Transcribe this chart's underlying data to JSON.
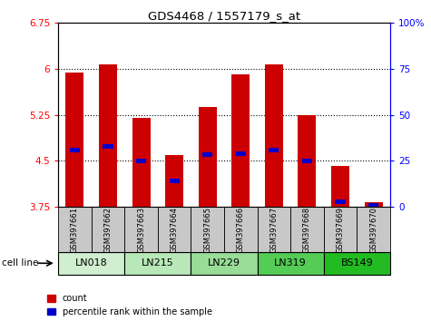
{
  "title": "GDS4468 / 1557179_s_at",
  "samples": [
    "GSM397661",
    "GSM397662",
    "GSM397663",
    "GSM397664",
    "GSM397665",
    "GSM397666",
    "GSM397667",
    "GSM397668",
    "GSM397669",
    "GSM397670"
  ],
  "cell_lines": [
    "LN018",
    "LN215",
    "LN229",
    "LN319",
    "BS149"
  ],
  "cell_line_spans": [
    [
      0,
      2
    ],
    [
      2,
      4
    ],
    [
      4,
      6
    ],
    [
      6,
      8
    ],
    [
      8,
      10
    ]
  ],
  "cell_line_colors": [
    "#d0eed0",
    "#b8e8b8",
    "#98dc98",
    "#55cc55",
    "#22bb22"
  ],
  "bar_values": [
    5.93,
    6.07,
    5.2,
    4.6,
    5.38,
    5.9,
    6.07,
    5.25,
    4.42,
    3.83
  ],
  "percentile_values": [
    4.68,
    4.73,
    4.5,
    4.17,
    4.6,
    4.62,
    4.68,
    4.5,
    3.84,
    3.78
  ],
  "bar_bottom": 3.75,
  "ylim_left": [
    3.75,
    6.75
  ],
  "yticks_left": [
    3.75,
    4.5,
    5.25,
    6.0,
    6.75
  ],
  "ytick_labels_left": [
    "3.75",
    "4.5",
    "5.25",
    "6",
    "6.75"
  ],
  "ylim_right": [
    0,
    100
  ],
  "yticks_right": [
    0,
    25,
    50,
    75,
    100
  ],
  "ytick_labels_right": [
    "0",
    "25",
    "50",
    "75",
    "100%"
  ],
  "bar_color": "#cc0000",
  "percentile_color": "#0000cc",
  "bar_width": 0.55,
  "sample_bg_color": "#c8c8c8",
  "legend_label_count": "count",
  "legend_label_percentile": "percentile rank within the sample",
  "cell_line_label": "cell line"
}
